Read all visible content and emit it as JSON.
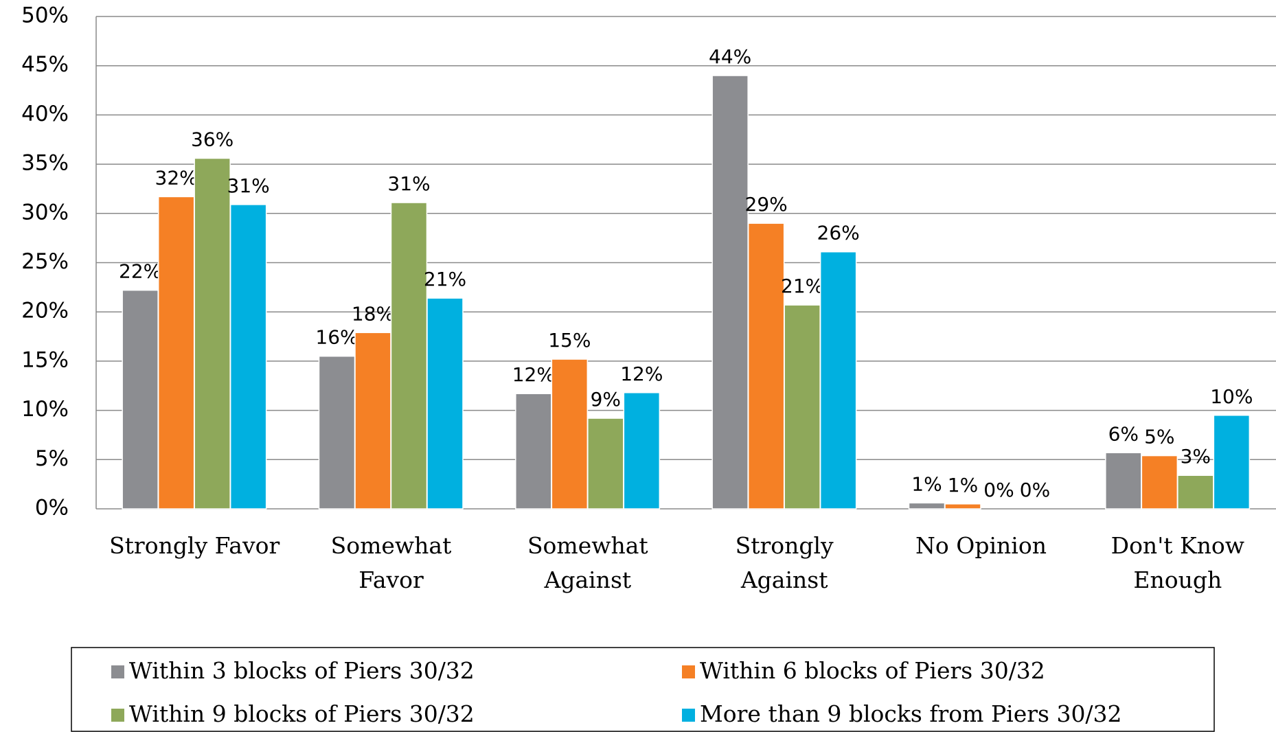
{
  "chart_data": {
    "type": "bar",
    "categories": [
      [
        "Strongly Favor"
      ],
      [
        "Somewhat",
        "Favor"
      ],
      [
        "Somewhat",
        "Against"
      ],
      [
        "Strongly",
        "Against"
      ],
      [
        "No Opinion"
      ],
      [
        "Don't Know",
        "Enough"
      ]
    ],
    "series": [
      {
        "name": "Within 3 blocks of Piers 30/32",
        "color": "#8c8d91",
        "values": [
          22.2,
          15.5,
          11.7,
          44.0,
          0.6,
          5.7
        ],
        "value_labels": [
          "22%",
          "16%",
          "12%",
          "44%",
          "1%",
          "6%"
        ]
      },
      {
        "name": "Within 6 blocks of Piers 30/32",
        "color": "#f58025",
        "values": [
          31.7,
          17.9,
          15.2,
          29.0,
          0.5,
          5.4
        ],
        "value_labels": [
          "32%",
          "18%",
          "15%",
          "29%",
          "1%",
          "5%"
        ]
      },
      {
        "name": "Within 9 blocks of Piers 30/32",
        "color": "#8ea85a",
        "values": [
          35.6,
          31.1,
          9.2,
          20.7,
          0,
          3.4
        ],
        "value_labels": [
          "36%",
          "31%",
          "9%",
          "21%",
          "0%",
          "3%"
        ]
      },
      {
        "name": "More than 9 blocks from Piers 30/32",
        "color": "#00b0e0",
        "values": [
          30.9,
          21.4,
          11.8,
          26.1,
          0,
          9.5
        ],
        "value_labels": [
          "31%",
          "21%",
          "12%",
          "26%",
          "0%",
          "10%"
        ]
      }
    ],
    "ylim": [
      0,
      50
    ],
    "yticks": [
      {
        "value": 0,
        "label": "0%"
      },
      {
        "value": 5,
        "label": "5%"
      },
      {
        "value": 10,
        "label": "10%"
      },
      {
        "value": 15,
        "label": "15%"
      },
      {
        "value": 20,
        "label": "20%"
      },
      {
        "value": 25,
        "label": "25%"
      },
      {
        "value": 30,
        "label": "30%"
      },
      {
        "value": 35,
        "label": "35%"
      },
      {
        "value": 40,
        "label": "40%"
      },
      {
        "value": 45,
        "label": "45%"
      },
      {
        "value": 50,
        "label": "50%"
      }
    ],
    "grid": true,
    "legend": "bottom"
  }
}
